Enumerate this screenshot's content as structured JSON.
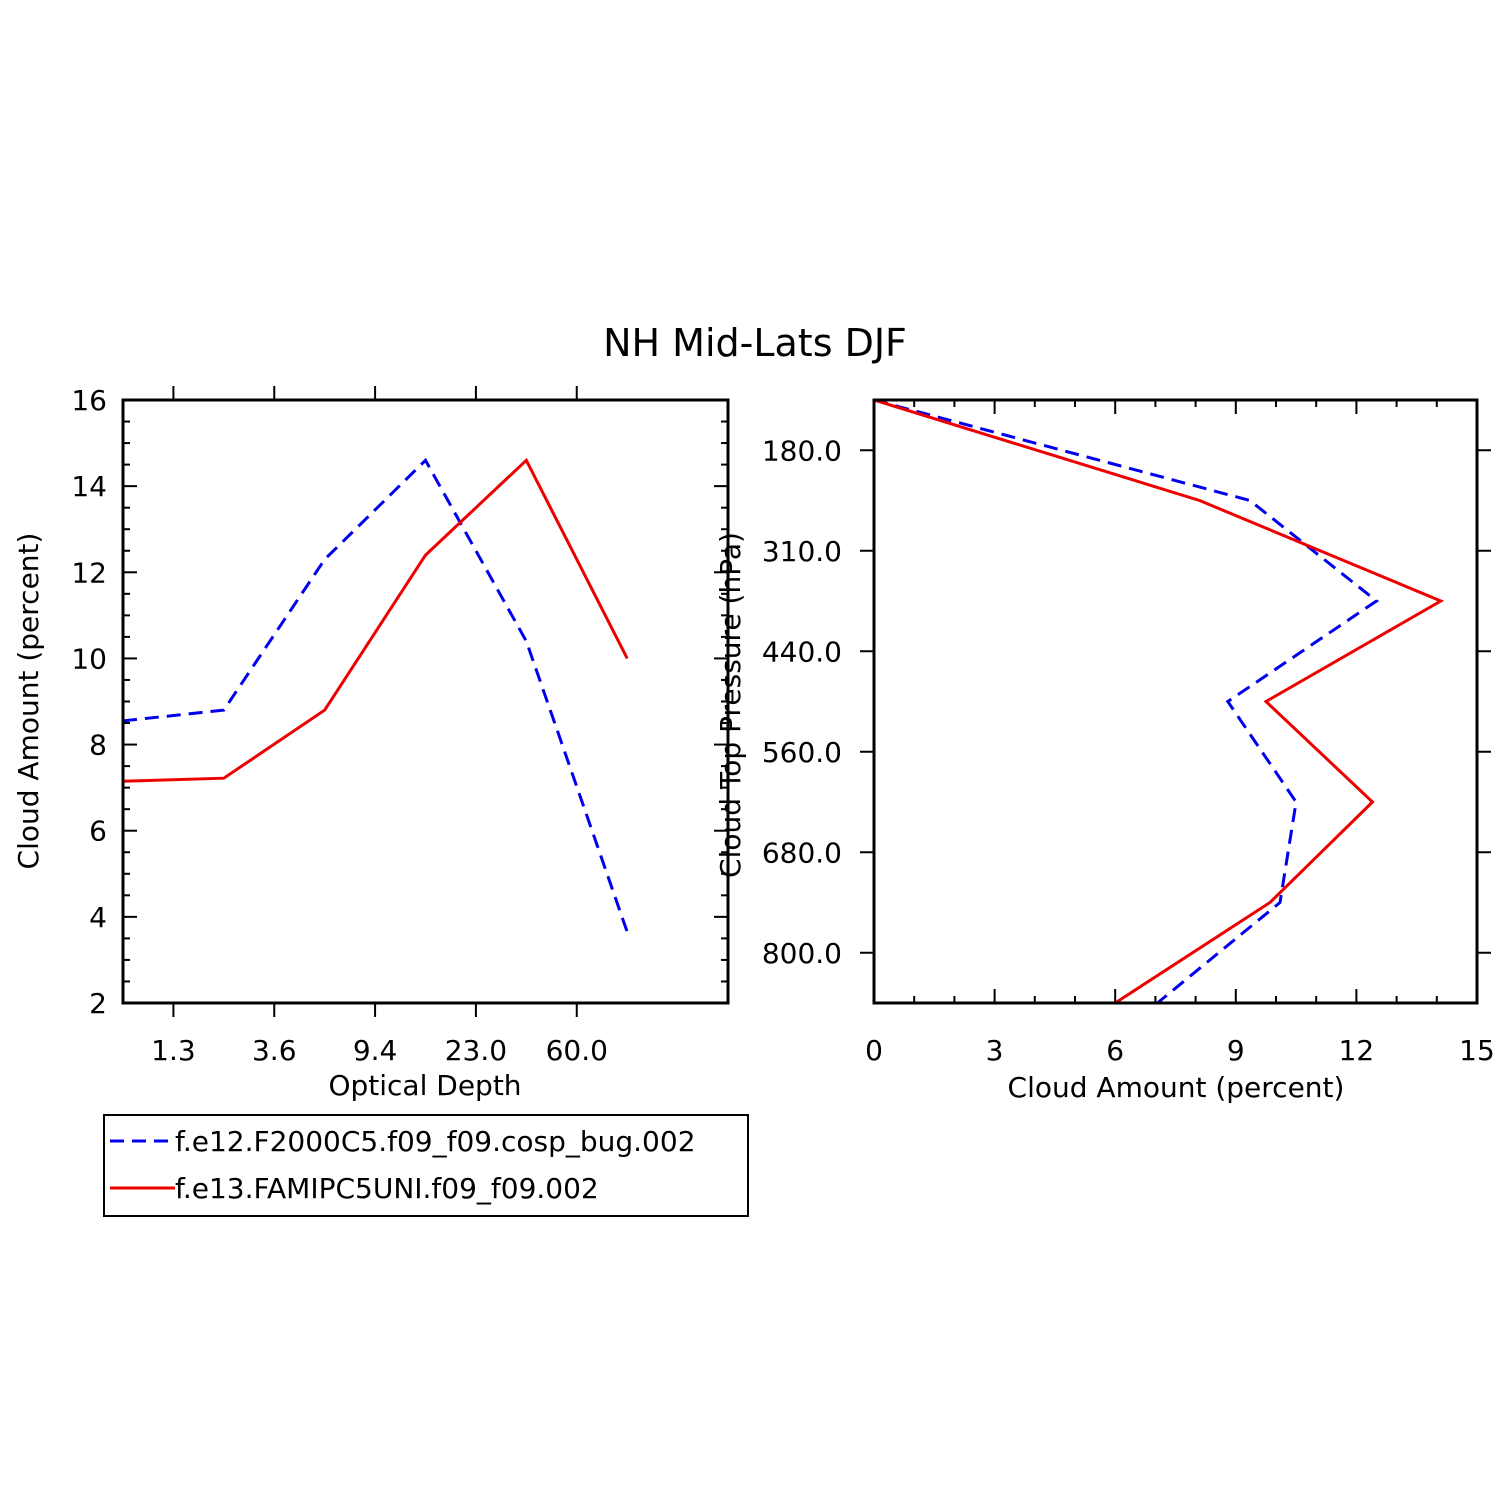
{
  "title": "NH Mid-Lats DJF",
  "colors": {
    "series1": "#0000ee",
    "series2": "#ee0000",
    "axes": "#000000"
  },
  "legend": {
    "entries": [
      {
        "label": "f.e12.F2000C5.f09_f09.cosp_bug.002",
        "style": "dashed",
        "color": "#0000ee"
      },
      {
        "label": "f.e13.FAMIPC5UNI.f09_f09.002",
        "style": "solid",
        "color": "#ee0000"
      }
    ]
  },
  "chart_data": [
    {
      "type": "line",
      "title": "NH Mid-Lats DJF",
      "xlabel": "Optical Depth",
      "ylabel": "Cloud Amount (percent)",
      "x_tick_labels": [
        "1.3",
        "3.6",
        "9.4",
        "23.0",
        "60.0"
      ],
      "x_categories": 7,
      "y_ticks": [
        2,
        4,
        6,
        8,
        10,
        12,
        14,
        16
      ],
      "y_tick_labels": [
        "2",
        "4",
        "6",
        "8",
        "10",
        "12",
        "14",
        "16"
      ],
      "ylim": [
        2,
        16
      ],
      "series": [
        {
          "name": "f.e12.F2000C5.f09_f09.cosp_bug.002",
          "style": "dashed",
          "values": [
            8.55,
            8.8,
            12.3,
            14.6,
            10.4,
            3.65
          ]
        },
        {
          "name": "f.e13.FAMIPC5UNI.f09_f09.002",
          "style": "solid",
          "values": [
            7.15,
            7.22,
            8.8,
            12.4,
            14.6,
            10.0
          ]
        }
      ]
    },
    {
      "type": "line",
      "xlabel": "Cloud Amount (percent)",
      "ylabel": "Cloud Top Pressure (hPa)",
      "x_ticks": [
        0,
        3,
        6,
        9,
        12,
        15
      ],
      "x_tick_labels": [
        "0",
        "3",
        "6",
        "9",
        "12",
        "15"
      ],
      "xlim": [
        0,
        15
      ],
      "y_tick_labels": [
        "180.0",
        "310.0",
        "440.0",
        "560.0",
        "680.0",
        "800.0"
      ],
      "ylim_levels": [
        0,
        12
      ],
      "series": [
        {
          "name": "f.e12.F2000C5.f09_f09.cosp_bug.002",
          "style": "dashed",
          "x": [
            0,
            9.35,
            12.5,
            8.8,
            10.5,
            10.1,
            7.05
          ],
          "level": [
            0,
            2,
            4,
            6,
            8,
            10,
            12
          ]
        },
        {
          "name": "f.e13.FAMIPC5UNI.f09_f09.002",
          "style": "solid",
          "x": [
            0,
            8.1,
            14.1,
            9.75,
            12.4,
            9.85,
            6.0
          ],
          "level": [
            0,
            2,
            4,
            6,
            8,
            10,
            12
          ]
        }
      ]
    }
  ]
}
